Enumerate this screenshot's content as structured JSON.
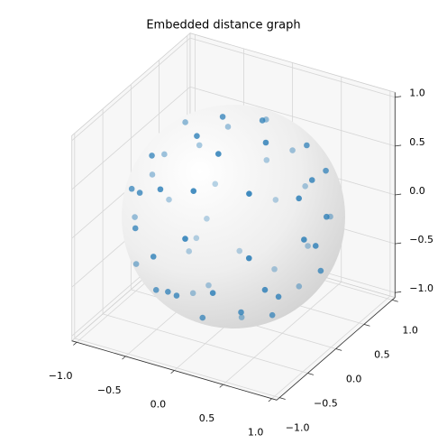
{
  "chart_data": {
    "type": "scatter3d",
    "title": "Embedded distance graph",
    "color": "#1f77b4",
    "x": [
      -0.11,
      -0.73,
      0.21,
      -0.15,
      -0.19,
      -0.5,
      -0.73,
      0.39,
      0.59,
      0.04,
      0.1,
      -0.91,
      -0.57,
      -0.22,
      0.78,
      -0.97,
      0.8,
      0.17,
      -0.69,
      -0.55,
      -0.31,
      0.03,
      -0.62,
      0.49,
      0.81,
      -0.88,
      -0.11,
      0.96,
      0.52,
      -0.97,
      -0.62,
      -0.52,
      0.92,
      0.06,
      -0.64,
      0.33,
      0.97,
      -0.64,
      -0.29,
      -0.26,
      0.61,
      -0.76,
      0.08,
      0.97,
      -0.37,
      0.43,
      -0.29,
      -0.14,
      -0.04,
      -0.42,
      0.32,
      0.71,
      0.78,
      0.5,
      0.14,
      0.09,
      0.67
    ],
    "y": [
      0.0,
      0.41,
      0.15,
      0.84,
      -0.32,
      0.77,
      0.66,
      -0.1,
      0.28,
      0.98,
      -0.44,
      0.35,
      -0.46,
      0.97,
      0.29,
      0.24,
      0.01,
      0.98,
      -0.61,
      -0.71,
      -0.76,
      -0.76,
      0.75,
      -0.57,
      -0.24,
      0.38,
      0.94,
      -0.01,
      0.82,
      -0.07,
      0.6,
      -0.84,
      -0.34,
      -0.96,
      0.45,
      0.75,
      -0.22,
      0.32,
      0.61,
      -0.97,
      -0.78,
      -0.41,
      0.59,
      -0.13,
      0.2,
      0.42,
      -0.87,
      -0.92,
      -0.94,
      0.01,
      -0.92,
      -0.67,
      -0.55,
      -0.73,
      -0.79,
      -0.01,
      -0.47
    ],
    "z": [
      0.99,
      0.55,
      0.97,
      0.53,
      0.93,
      0.39,
      0.19,
      0.92,
      0.76,
      0.2,
      0.89,
      0.2,
      0.69,
      0.03,
      0.55,
      0.03,
      0.6,
      -0.13,
      0.39,
      0.44,
      0.57,
      0.65,
      -0.22,
      0.66,
      0.54,
      -0.27,
      -0.33,
      0.28,
      -0.26,
      -0.25,
      -0.5,
      0.15,
      0.2,
      0.27,
      -0.63,
      -0.58,
      0.09,
      -0.7,
      -0.74,
      0.0,
      0.14,
      -0.5,
      -0.81,
      -0.21,
      -0.91,
      -0.8,
      -0.4,
      -0.35,
      -0.35,
      -0.91,
      -0.23,
      -0.21,
      -0.32,
      -0.47,
      -0.6,
      -1.0,
      -0.58
    ],
    "xlim": [
      -1.05,
      1.05
    ],
    "ylim": [
      -1.05,
      1.05
    ],
    "zlim": [
      -1.05,
      1.05
    ],
    "xticks": [
      {
        "value": -1,
        "label": "−1.0"
      },
      {
        "value": -0.5,
        "label": "−0.5"
      },
      {
        "value": 0,
        "label": "0.0"
      },
      0.5,
      {
        "value": 1,
        "label": "1.0"
      }
    ],
    "yticks": [
      {
        "value": -1,
        "label": "−1.0"
      },
      {
        "value": -0.5,
        "label": "−0.5"
      },
      {
        "value": 0,
        "label": "0.0"
      },
      0.5,
      {
        "value": 1,
        "label": "1.0"
      }
    ],
    "zticks": [
      {
        "value": -1,
        "label": "−1.0"
      },
      {
        "value": -0.5,
        "label": "−0.5"
      },
      {
        "value": 0,
        "label": "0.0"
      },
      0.5,
      {
        "value": 1,
        "label": "1.0"
      }
    ],
    "grid": true
  }
}
